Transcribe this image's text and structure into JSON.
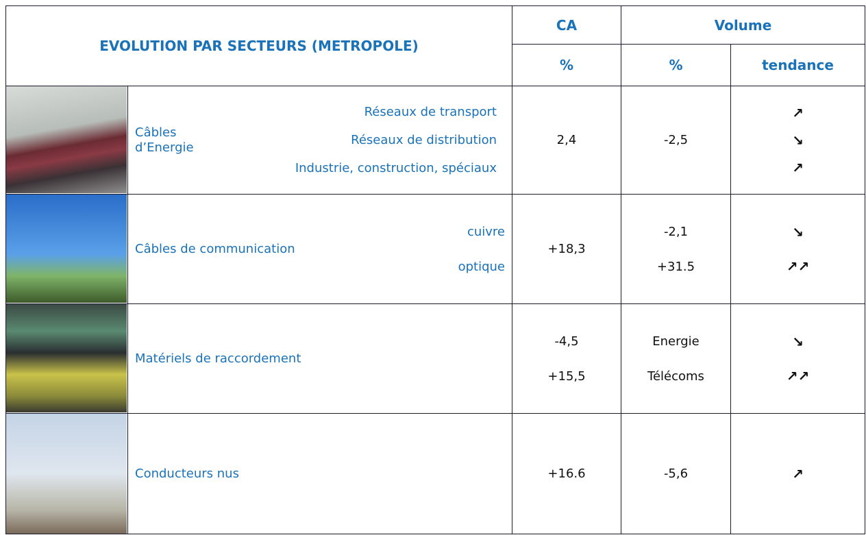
{
  "header": {
    "title": "EVOLUTION PAR SECTEURS (METROPOLE)",
    "ca": "CA",
    "volume": "Volume",
    "ca_unit": "%",
    "volume_unit": "%",
    "trend": "tendance"
  },
  "rows": [
    {
      "label": "Câbles d’Energie",
      "items": [
        "Réseaux de transport",
        "Réseaux de distribution",
        "Industrie, construction, spéciaux"
      ],
      "ca": [
        "2,4"
      ],
      "volume": [
        "-2,5"
      ],
      "trend": [
        "↗",
        "↘",
        "↗"
      ]
    },
    {
      "label": "Câbles de communication",
      "items": [
        "cuivre",
        "optique"
      ],
      "ca": [
        "+18,3"
      ],
      "volume": [
        "-2,1",
        "+31.5"
      ],
      "trend": [
        "↘",
        "↗↗"
      ]
    },
    {
      "label": "Matériels de raccordement",
      "items": [],
      "ca": [
        "-4,5",
        "+15,5"
      ],
      "volume": [
        "Energie",
        "Télécoms"
      ],
      "trend": [
        "↘",
        "↗↗"
      ]
    },
    {
      "label": "Conducteurs nus",
      "items": [],
      "ca": [
        "+16.6"
      ],
      "volume": [
        "-5,6"
      ],
      "trend": [
        "↗"
      ]
    }
  ]
}
